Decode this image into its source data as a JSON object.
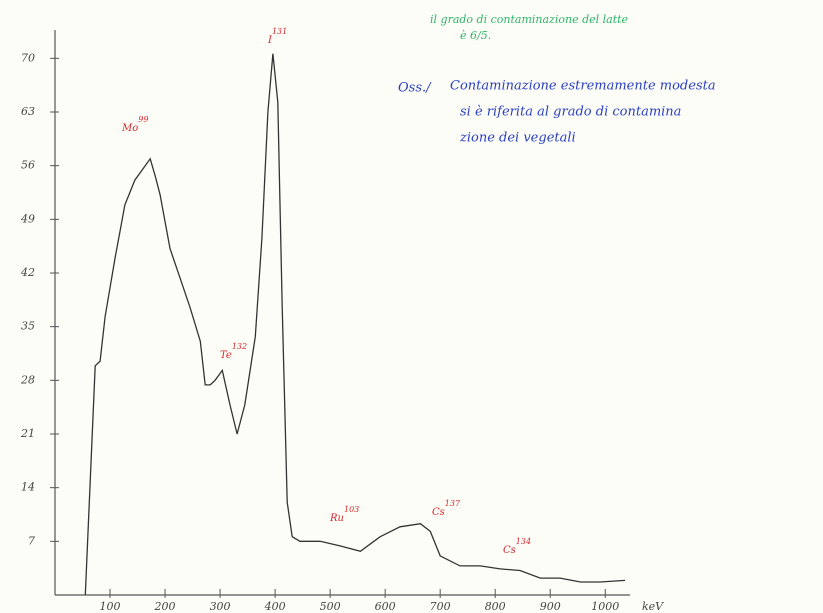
{
  "chart_data": {
    "type": "line",
    "x": [
      55,
      73,
      82,
      91,
      109,
      127,
      145,
      164,
      173,
      182,
      191,
      209,
      227,
      245,
      264,
      273,
      282,
      291,
      304,
      318,
      331,
      345,
      364,
      376,
      387,
      396,
      405,
      413,
      422,
      431,
      445,
      482,
      518,
      555,
      591,
      627,
      664,
      682,
      700,
      736,
      773,
      809,
      845,
      882,
      918,
      955,
      991,
      1036
    ],
    "values": [
      0,
      29.9,
      30.5,
      36.3,
      43.9,
      50.9,
      54.1,
      56,
      56.9,
      54.7,
      52.2,
      45.2,
      41.4,
      37.6,
      33.1,
      27.4,
      27.4,
      28,
      29.3,
      24.8,
      21,
      24.8,
      33.7,
      46.5,
      63,
      70.6,
      64.3,
      37.6,
      12.1,
      7.6,
      7,
      7,
      6.4,
      5.7,
      7.6,
      8.9,
      9.3,
      8.3,
      5.1,
      3.8,
      3.8,
      3.4,
      3.2,
      2.2,
      2.2,
      1.7,
      1.7,
      1.9
    ],
    "color": "#333333",
    "xlim": [
      0,
      1045
    ],
    "ylim": [
      0,
      75
    ],
    "xticks": [
      100,
      200,
      300,
      400,
      500,
      600,
      700,
      800,
      900,
      1000
    ],
    "yticks": [
      7,
      14,
      21,
      28,
      35,
      42,
      49,
      56,
      63,
      70
    ],
    "x_label": "keV",
    "annotations": [
      {
        "label": "Mo",
        "mass": "99"
      },
      {
        "label": "Te",
        "mass": "132"
      },
      {
        "label": "I",
        "mass": "131"
      },
      {
        "label": "Ru",
        "mass": "103"
      },
      {
        "label": "Cs",
        "mass": "137"
      },
      {
        "label": "Cs",
        "mass": "134"
      }
    ],
    "note_green": [
      "il grado di contaminazione del latte",
      "è 6/5."
    ],
    "note_blue": {
      "prefix": "Oss./",
      "lines": [
        "Contaminazione estremamente modesta",
        "si è riferita al grado di contamina",
        "zione dei vegetali"
      ]
    }
  }
}
